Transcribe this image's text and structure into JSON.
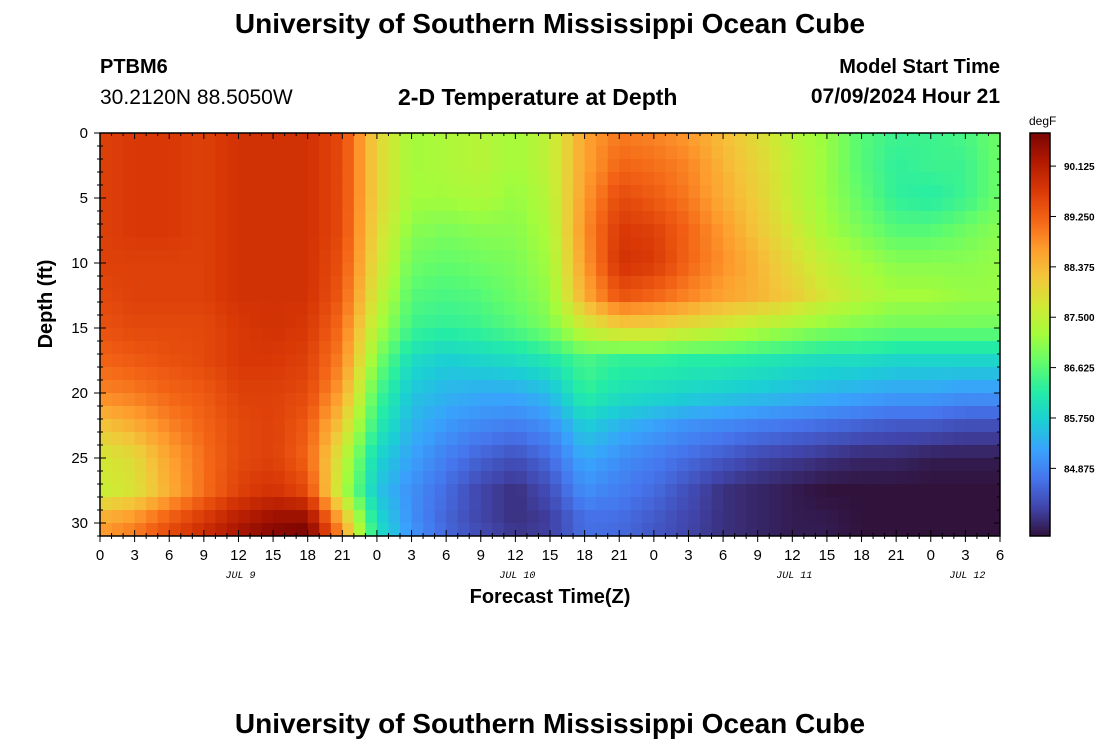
{
  "header": {
    "title": "University of Southern Mississippi Ocean Cube",
    "station_id": "PTBM6",
    "station_coords": "30.2120N  88.5050W",
    "plot_title": "2-D Temperature at Depth",
    "start_label": "Model Start Time",
    "start_value": "07/09/2024 Hour 21"
  },
  "footer": {
    "title": "University of Southern Mississippi Ocean Cube"
  },
  "chart_data": {
    "type": "heatmap",
    "title": "2-D Temperature at Depth",
    "xlabel": "Forecast Time(Z)",
    "ylabel": "Depth (ft)",
    "x_hours": [
      0,
      78
    ],
    "ylim": [
      0,
      31
    ],
    "x_tick_labels": [
      "0",
      "3",
      "6",
      "9",
      "12",
      "15",
      "18",
      "21",
      "0",
      "3",
      "6",
      "9",
      "12",
      "15",
      "18",
      "21",
      "0",
      "3",
      "6",
      "9",
      "12",
      "15",
      "18",
      "21",
      "0",
      "3",
      "6"
    ],
    "y_ticks": [
      0,
      5,
      10,
      15,
      20,
      25,
      30
    ],
    "date_labels": [
      {
        "label": "JUL 9",
        "hour": 12
      },
      {
        "label": "JUL 10",
        "hour": 36
      },
      {
        "label": "JUL 11",
        "hour": 60
      },
      {
        "label": "JUL 12",
        "hour": 75
      }
    ],
    "colorbar": {
      "unit": "degF",
      "min": 83.7,
      "max": 90.7,
      "tick_values": [
        90.125,
        89.25,
        88.375,
        87.5,
        86.625,
        85.75,
        84.875
      ],
      "tick_labels": [
        "90.125",
        "89.250",
        "88.375",
        "87.500",
        "86.625",
        "85.750",
        "84.875"
      ]
    },
    "field_description": "Temperature (degF) by forecast hour (columns) and depth in ft (rows); sampled every 3 h and 2.5 ft",
    "field_grid": {
      "hours": [
        0,
        3,
        6,
        9,
        12,
        15,
        18,
        21,
        24,
        27,
        30,
        33,
        36,
        39,
        42,
        45,
        48,
        51,
        54,
        57,
        60,
        63,
        66,
        69,
        72,
        75,
        78
      ],
      "depths": [
        0,
        2.5,
        5,
        7.5,
        10,
        12.5,
        15,
        17.5,
        20,
        22.5,
        25,
        27.5,
        30,
        31
      ],
      "values": [
        [
          89.6,
          89.7,
          89.7,
          89.6,
          89.8,
          89.8,
          89.8,
          89.5,
          88.0,
          87.2,
          87.3,
          87.4,
          87.2,
          87.5,
          88.6,
          89.0,
          88.9,
          88.7,
          88.3,
          87.9,
          87.4,
          87.1,
          86.6,
          86.4,
          86.4,
          86.5,
          86.8
        ],
        [
          89.6,
          89.7,
          89.7,
          89.6,
          89.8,
          89.8,
          89.8,
          89.5,
          88.0,
          87.2,
          87.3,
          87.4,
          87.2,
          87.5,
          88.6,
          89.2,
          89.1,
          88.9,
          88.4,
          88.0,
          87.5,
          87.1,
          86.6,
          86.3,
          86.4,
          86.4,
          86.8
        ],
        [
          89.6,
          89.7,
          89.7,
          89.6,
          89.8,
          89.8,
          89.8,
          89.5,
          88.0,
          87.2,
          87.2,
          87.3,
          87.1,
          87.4,
          88.7,
          89.5,
          89.3,
          89.0,
          88.5,
          88.1,
          87.5,
          87.1,
          86.7,
          86.3,
          86.2,
          86.4,
          86.8
        ],
        [
          89.6,
          89.7,
          89.7,
          89.6,
          89.8,
          89.8,
          89.8,
          89.5,
          87.9,
          87.0,
          86.9,
          87.0,
          87.0,
          87.3,
          88.8,
          89.7,
          89.6,
          89.2,
          88.7,
          88.2,
          87.7,
          87.2,
          86.9,
          86.6,
          86.6,
          86.8,
          87.0
        ],
        [
          89.6,
          89.6,
          89.6,
          89.6,
          89.8,
          89.8,
          89.8,
          89.4,
          87.8,
          86.8,
          86.7,
          86.8,
          86.9,
          87.2,
          88.7,
          89.8,
          89.7,
          89.2,
          88.8,
          88.4,
          87.9,
          87.5,
          87.2,
          87.0,
          87.0,
          87.0,
          87.1
        ],
        [
          89.5,
          89.6,
          89.6,
          89.6,
          89.8,
          89.8,
          89.8,
          89.3,
          87.6,
          86.6,
          86.5,
          86.6,
          86.8,
          87.1,
          88.5,
          89.4,
          89.2,
          88.9,
          88.6,
          88.4,
          88.1,
          87.7,
          87.4,
          87.2,
          87.2,
          87.1,
          87.1
        ],
        [
          89.4,
          89.5,
          89.5,
          89.5,
          89.7,
          89.8,
          89.7,
          89.1,
          87.3,
          86.4,
          86.3,
          86.4,
          86.6,
          86.9,
          87.6,
          88.0,
          88.0,
          87.8,
          87.6,
          87.4,
          87.2,
          87.0,
          86.9,
          86.8,
          86.8,
          86.8,
          86.8
        ],
        [
          89.2,
          89.3,
          89.4,
          89.5,
          89.7,
          89.7,
          89.6,
          88.9,
          86.9,
          85.9,
          85.7,
          85.8,
          85.9,
          86.1,
          86.5,
          86.3,
          86.3,
          86.2,
          86.2,
          86.1,
          86.0,
          85.9,
          85.9,
          85.8,
          85.8,
          85.8,
          85.8
        ],
        [
          88.9,
          89.0,
          89.2,
          89.3,
          89.6,
          89.6,
          89.5,
          88.6,
          86.5,
          85.6,
          85.4,
          85.3,
          85.3,
          85.5,
          86.3,
          86.0,
          85.9,
          85.8,
          85.7,
          85.6,
          85.5,
          85.4,
          85.3,
          85.2,
          85.2,
          85.1,
          85.1
        ],
        [
          88.2,
          88.5,
          88.9,
          89.2,
          89.5,
          89.6,
          89.3,
          88.1,
          86.2,
          85.4,
          85.1,
          84.9,
          84.8,
          85.0,
          85.7,
          85.4,
          85.2,
          85.0,
          84.9,
          84.8,
          84.7,
          84.6,
          84.5,
          84.4,
          84.4,
          84.3,
          84.3
        ],
        [
          87.7,
          87.9,
          88.6,
          89.1,
          89.5,
          89.6,
          89.2,
          87.6,
          85.8,
          85.2,
          84.8,
          84.5,
          84.3,
          84.6,
          85.3,
          85.0,
          84.8,
          84.6,
          84.4,
          84.2,
          84.1,
          84.0,
          83.9,
          83.9,
          83.8,
          83.8,
          83.8
        ],
        [
          87.6,
          87.8,
          88.5,
          89.1,
          89.6,
          89.8,
          89.5,
          87.4,
          85.6,
          85.0,
          84.6,
          84.2,
          84.0,
          84.3,
          85.0,
          84.8,
          84.6,
          84.3,
          84.0,
          83.9,
          83.8,
          83.7,
          83.7,
          83.7,
          83.7,
          83.7,
          83.7
        ],
        [
          88.6,
          88.9,
          89.4,
          89.8,
          90.2,
          90.5,
          90.6,
          88.6,
          85.9,
          85.0,
          84.5,
          84.2,
          84.0,
          84.1,
          84.6,
          84.6,
          84.4,
          84.2,
          84.0,
          83.9,
          83.8,
          83.8,
          83.7,
          83.7,
          83.7,
          83.7,
          83.7
        ],
        [
          88.7,
          89.0,
          89.5,
          89.9,
          90.3,
          90.6,
          90.7,
          88.8,
          86.0,
          85.1,
          84.6,
          84.3,
          84.1,
          84.2,
          84.7,
          84.6,
          84.4,
          84.2,
          84.0,
          83.9,
          83.8,
          83.8,
          83.7,
          83.7,
          83.7,
          83.7,
          83.7
        ]
      ]
    }
  },
  "colors": {
    "colormap": [
      "#30123b",
      "#4145ab",
      "#4675ed",
      "#39a2fc",
      "#1bcfd4",
      "#24eca6",
      "#61fc6c",
      "#a4fc3b",
      "#d1e834",
      "#f3c63a",
      "#fe9b2d",
      "#f36315",
      "#d93806",
      "#b11901",
      "#7a0402"
    ],
    "frame": "#000000",
    "background": "#ffffff"
  }
}
